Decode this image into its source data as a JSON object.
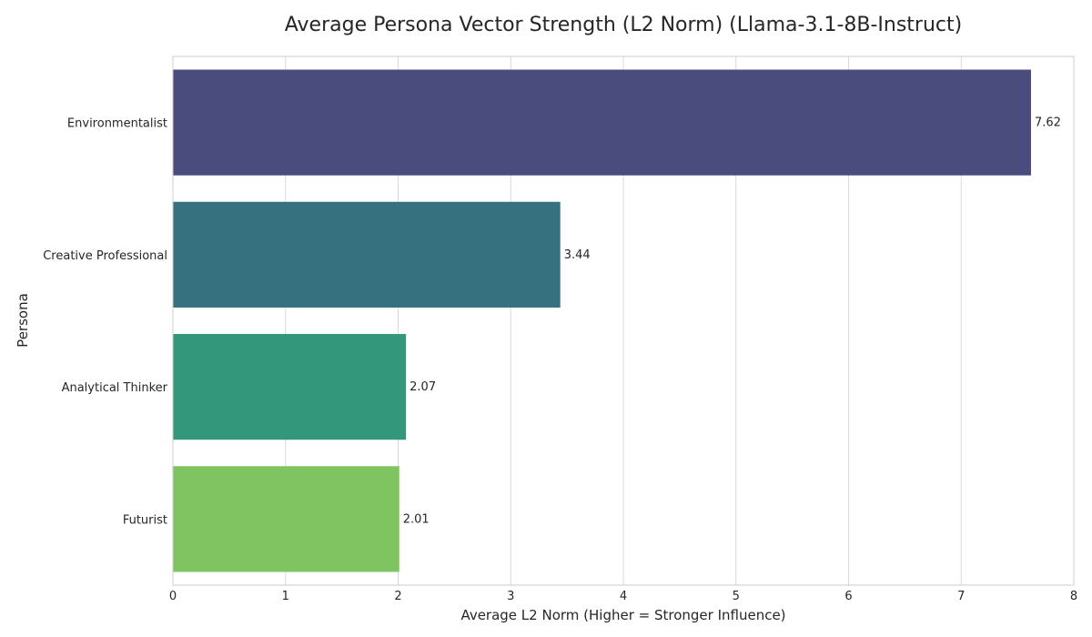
{
  "chart_data": {
    "type": "bar",
    "orientation": "horizontal",
    "title": "Average Persona Vector Strength (L2 Norm) (Llama-3.1-8B-Instruct)",
    "xlabel": "Average L2 Norm (Higher = Stronger Influence)",
    "ylabel": "Persona",
    "categories": [
      "Environmentalist",
      "Creative Professional",
      "Analytical Thinker",
      "Futurist"
    ],
    "values": [
      7.62,
      3.44,
      2.07,
      2.01
    ],
    "value_labels": [
      "7.62",
      "3.44",
      "2.07",
      "2.01"
    ],
    "xlim": [
      0,
      8
    ],
    "x_ticks": [
      0,
      1,
      2,
      3,
      4,
      5,
      6,
      7,
      8
    ],
    "x_tick_labels": [
      "0",
      "1",
      "2",
      "3",
      "4",
      "5",
      "6",
      "7",
      "8"
    ],
    "grid": "vertical",
    "colors": [
      "#4a4c7e",
      "#367180",
      "#33987b",
      "#80c361"
    ],
    "grid_color": "#d9d9d9",
    "frame_color": "#cccccc",
    "text_color": "#262626"
  }
}
